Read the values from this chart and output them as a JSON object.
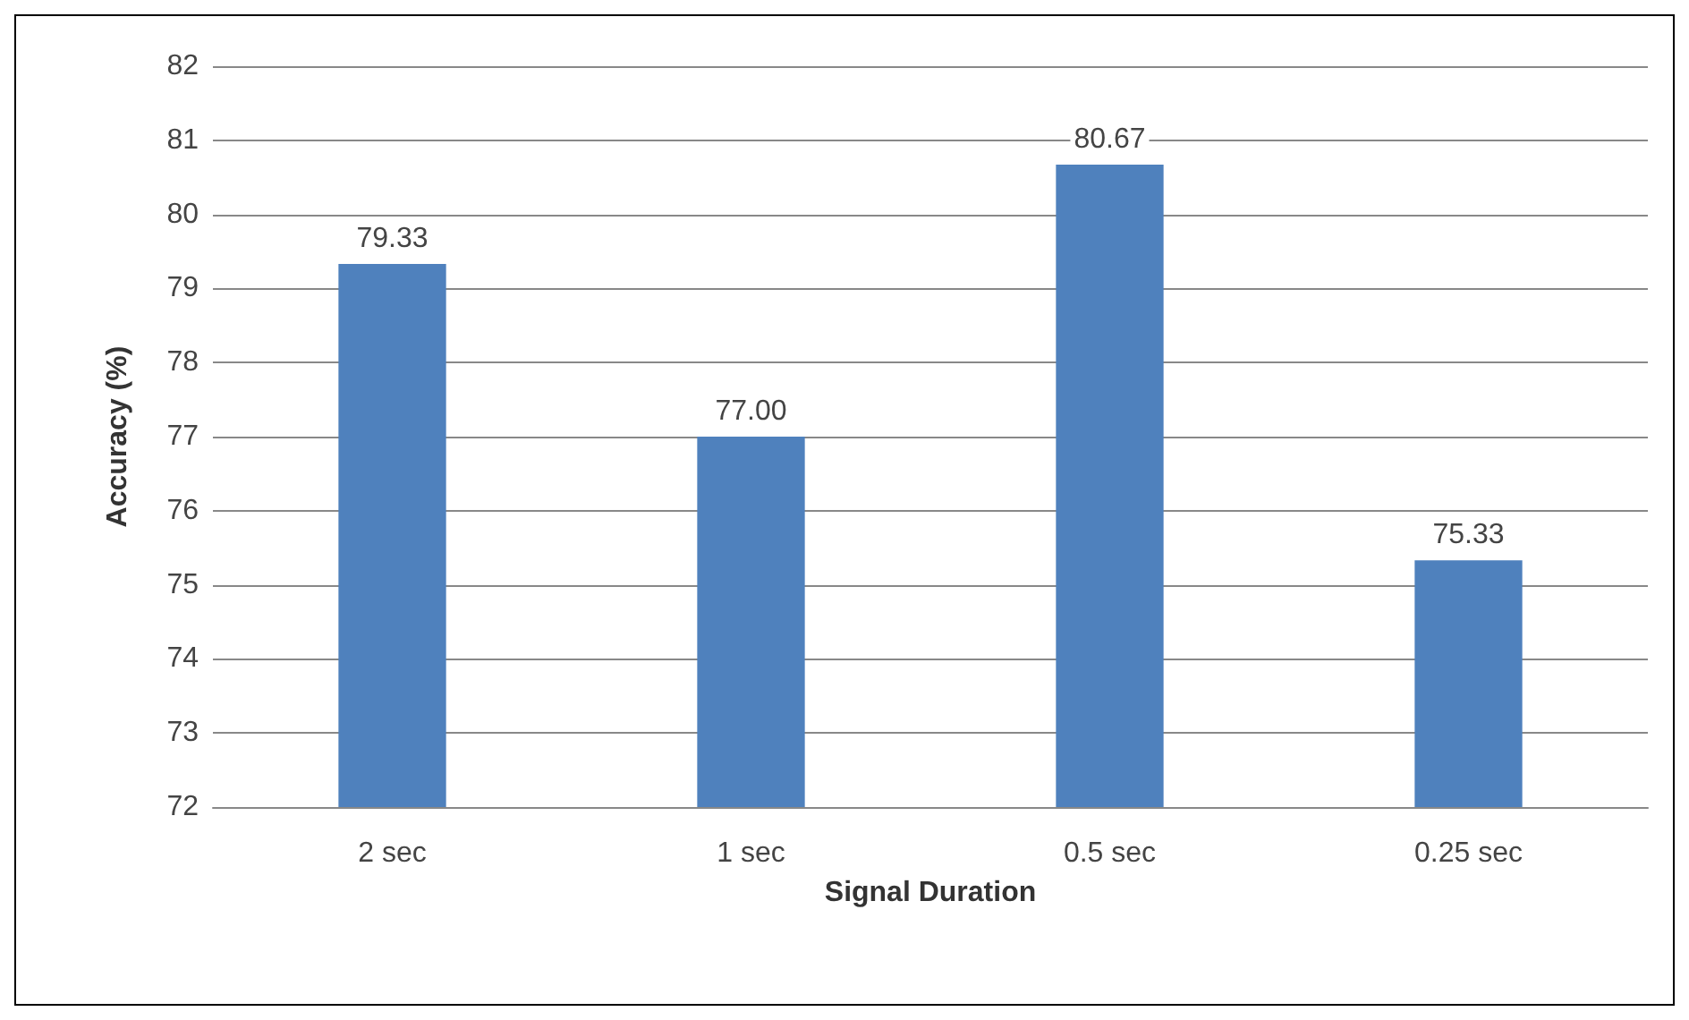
{
  "chart_data": {
    "type": "bar",
    "xlabel": "Signal Duration",
    "ylabel": "Accuracy (%)",
    "categories": [
      "2 sec",
      "1 sec",
      "0.5 sec",
      "0.25 sec"
    ],
    "values": [
      79.33,
      77,
      80.67,
      75.33
    ],
    "value_labels": [
      "79.33",
      "77.00",
      "80.67",
      "75.33"
    ],
    "color": "#4f81bd",
    "ylim": [
      72,
      82
    ],
    "yticks": [
      72,
      73,
      74,
      75,
      76,
      77,
      78,
      79,
      80,
      81,
      82
    ],
    "grid": "y"
  }
}
